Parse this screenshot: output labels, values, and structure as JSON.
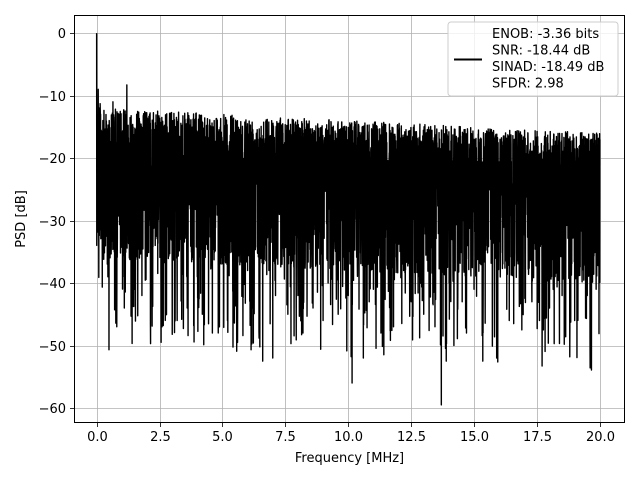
{
  "chart_data": {
    "type": "line",
    "title": "",
    "xlabel": "Frequency [MHz]",
    "ylabel": "PSD [dB]",
    "xlim": [
      -0.9,
      21.0
    ],
    "ylim": [
      -62.4,
      2.9
    ],
    "x_ticks": [
      0.0,
      2.5,
      5.0,
      7.5,
      10.0,
      12.5,
      15.0,
      17.5,
      20.0
    ],
    "x_tick_labels": [
      "0.0",
      "2.5",
      "5.0",
      "7.5",
      "10.0",
      "12.5",
      "15.0",
      "17.5",
      "20.0"
    ],
    "y_ticks": [
      0,
      -10,
      -20,
      -30,
      -40,
      -50,
      -60
    ],
    "y_tick_labels": [
      "0",
      "−10",
      "−20",
      "−30",
      "−40",
      "−50",
      "−60"
    ],
    "grid": true,
    "legend_position": "top-right",
    "legend_lines": [
      "ENOB: -3.36 bits",
      "SNR: -18.44 dB",
      "SINAD: -18.49 dB",
      "SFDR: 2.98"
    ],
    "series": [
      {
        "color": "#000000",
        "x_range": [
          0.0,
          20.0
        ],
        "description": "dense noisy spectrum; values are approximate envelope samples",
        "points": [
          [
            0.0,
            0.0
          ],
          [
            0.02,
            -16.5
          ],
          [
            0.04,
            -28.0
          ],
          [
            0.06,
            -9.0
          ],
          [
            0.08,
            -25.0
          ],
          [
            0.1,
            -12.0
          ],
          [
            0.12,
            -31.5
          ],
          [
            0.15,
            -13.0
          ],
          [
            0.2,
            -29.0
          ],
          [
            0.25,
            -14.0
          ],
          [
            0.3,
            -33.0
          ],
          [
            0.35,
            -15.5
          ],
          [
            0.4,
            -26.0
          ],
          [
            0.45,
            -39.0
          ],
          [
            0.5,
            -14.0
          ],
          [
            0.6,
            -33.0
          ],
          [
            0.65,
            -11.0
          ],
          [
            0.7,
            -35.0
          ],
          [
            0.8,
            -47.0
          ],
          [
            0.9,
            -13.0
          ],
          [
            1.0,
            -34.0
          ],
          [
            1.1,
            -44.0
          ],
          [
            1.2,
            -8.3
          ],
          [
            1.3,
            -36.0
          ],
          [
            1.4,
            -15.0
          ],
          [
            1.5,
            -41.0
          ],
          [
            1.6,
            -14.0
          ],
          [
            1.7,
            -36.0
          ],
          [
            1.8,
            -42.0
          ],
          [
            2.0,
            -15.0
          ],
          [
            2.2,
            -38.0
          ],
          [
            2.4,
            -16.0
          ],
          [
            2.6,
            -47.0
          ],
          [
            2.8,
            -15.0
          ],
          [
            3.0,
            -36.0
          ],
          [
            3.2,
            -46.0
          ],
          [
            3.4,
            -16.0
          ],
          [
            3.6,
            -44.0
          ],
          [
            3.8,
            -18.0
          ],
          [
            4.0,
            -39.0
          ],
          [
            4.2,
            -45.0
          ],
          [
            4.4,
            -16.0
          ],
          [
            4.6,
            -48.0
          ],
          [
            4.8,
            -17.0
          ],
          [
            5.0,
            -33.0
          ],
          [
            5.2,
            -46.0
          ],
          [
            5.4,
            -17.0
          ],
          [
            5.6,
            -49.5
          ],
          [
            5.8,
            -16.0
          ],
          [
            6.0,
            -38.0
          ],
          [
            6.2,
            -44.0
          ],
          [
            6.4,
            -17.0
          ],
          [
            6.6,
            -52.5
          ],
          [
            6.8,
            -18.0
          ],
          [
            7.0,
            -52.0
          ],
          [
            7.2,
            -37.0
          ],
          [
            7.4,
            -16.0
          ],
          [
            7.6,
            -45.0
          ],
          [
            7.8,
            -18.0
          ],
          [
            8.0,
            -42.0
          ],
          [
            8.2,
            -48.0
          ],
          [
            8.4,
            -17.0
          ],
          [
            8.6,
            -44.0
          ],
          [
            8.8,
            -19.0
          ],
          [
            9.0,
            -46.0
          ],
          [
            9.2,
            -40.0
          ],
          [
            9.4,
            -17.0
          ],
          [
            9.6,
            -45.0
          ],
          [
            9.8,
            -18.0
          ],
          [
            10.0,
            -42.0
          ],
          [
            10.15,
            -56.0
          ],
          [
            10.3,
            -18.0
          ],
          [
            10.6,
            -52.0
          ],
          [
            10.8,
            -17.0
          ],
          [
            11.0,
            -41.0
          ],
          [
            11.3,
            -48.0
          ],
          [
            11.5,
            -18.0
          ],
          [
            11.8,
            -47.0
          ],
          [
            12.0,
            -17.0
          ],
          [
            12.2,
            -38.0
          ],
          [
            12.5,
            -43.0
          ],
          [
            12.7,
            -17.0
          ],
          [
            13.0,
            -45.0
          ],
          [
            13.2,
            -18.0
          ],
          [
            13.45,
            -47.0
          ],
          [
            13.7,
            -59.5
          ],
          [
            13.9,
            -17.0
          ],
          [
            14.2,
            -50.0
          ],
          [
            14.4,
            -18.0
          ],
          [
            14.7,
            -48.0
          ],
          [
            15.0,
            -41.0
          ],
          [
            15.2,
            -17.0
          ],
          [
            15.35,
            -52.5
          ],
          [
            15.6,
            -18.0
          ],
          [
            15.9,
            -52.0
          ],
          [
            16.1,
            -18.0
          ],
          [
            16.4,
            -46.0
          ],
          [
            16.6,
            -17.0
          ],
          [
            16.9,
            -47.5
          ],
          [
            17.1,
            -18.0
          ],
          [
            17.3,
            -43.0
          ],
          [
            17.6,
            -46.0
          ],
          [
            17.8,
            -17.0
          ],
          [
            18.0,
            -44.0
          ],
          [
            18.2,
            -18.0
          ],
          [
            18.5,
            -42.0
          ],
          [
            18.7,
            -17.0
          ],
          [
            19.0,
            -46.0
          ],
          [
            19.2,
            -18.0
          ],
          [
            19.5,
            -42.0
          ],
          [
            19.7,
            -17.0
          ],
          [
            19.85,
            -41.0
          ],
          [
            20.0,
            -17.0
          ]
        ]
      }
    ]
  }
}
